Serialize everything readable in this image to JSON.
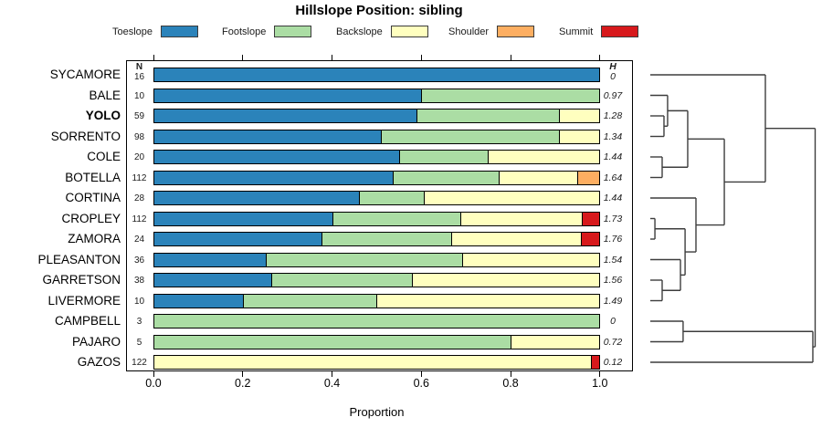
{
  "title": "Hillslope Position: sibling",
  "legend": {
    "items": [
      {
        "label": "Toeslope",
        "color": "#2B83BA"
      },
      {
        "label": "Footslope",
        "color": "#ABDDA4"
      },
      {
        "label": "Backslope",
        "color": "#FFFFBF"
      },
      {
        "label": "Shoulder",
        "color": "#FDAE61"
      },
      {
        "label": "Summit",
        "color": "#D7191C"
      }
    ]
  },
  "columns": {
    "n_header": "N",
    "h_header": "H"
  },
  "axis": {
    "xlabel": "Proportion",
    "tick_labels": [
      "0.0",
      "0.2",
      "0.4",
      "0.6",
      "0.8",
      "1.0"
    ],
    "tick_values": [
      0,
      0.2,
      0.4,
      0.6,
      0.8,
      1.0
    ]
  },
  "chart_data": {
    "type": "bar",
    "stacked": true,
    "orientation": "horizontal",
    "title": "Hillslope Position: sibling",
    "xlabel": "Proportion",
    "xlim": [
      0,
      1
    ],
    "grid": false,
    "legend_position": "top",
    "categories": [
      "Toeslope",
      "Footslope",
      "Backslope",
      "Shoulder",
      "Summit"
    ],
    "colors": [
      "#2B83BA",
      "#ABDDA4",
      "#FFFFBF",
      "#FDAE61",
      "#D7191C"
    ],
    "rows": [
      {
        "name": "SYCAMORE",
        "bold": false,
        "n": 16,
        "h": "0",
        "values": [
          1,
          0,
          0,
          0,
          0
        ]
      },
      {
        "name": "BALE",
        "bold": false,
        "n": 10,
        "h": "0.97",
        "values": [
          0.6,
          0.4,
          0,
          0,
          0
        ]
      },
      {
        "name": "YOLO",
        "bold": true,
        "n": 59,
        "h": "1.28",
        "values": [
          0.59,
          0.32,
          0.09,
          0,
          0
        ]
      },
      {
        "name": "SORRENTO",
        "bold": false,
        "n": 98,
        "h": "1.34",
        "values": [
          0.51,
          0.4,
          0.09,
          0,
          0
        ]
      },
      {
        "name": "COLE",
        "bold": false,
        "n": 20,
        "h": "1.44",
        "values": [
          0.55,
          0.2,
          0.25,
          0,
          0
        ]
      },
      {
        "name": "BOTELLA",
        "bold": false,
        "n": 112,
        "h": "1.64",
        "values": [
          0.535,
          0.24,
          0.175,
          0.05,
          0
        ]
      },
      {
        "name": "CORTINA",
        "bold": false,
        "n": 28,
        "h": "1.44",
        "values": [
          0.46,
          0.145,
          0.395,
          0,
          0
        ]
      },
      {
        "name": "CROPLEY",
        "bold": false,
        "n": 112,
        "h": "1.73",
        "values": [
          0.4,
          0.288,
          0.272,
          0,
          0.04
        ]
      },
      {
        "name": "ZAMORA",
        "bold": false,
        "n": 24,
        "h": "1.76",
        "values": [
          0.375,
          0.292,
          0.291,
          0,
          0.042
        ]
      },
      {
        "name": "PLEASANTON",
        "bold": false,
        "n": 36,
        "h": "1.54",
        "values": [
          0.25,
          0.443,
          0.307,
          0,
          0
        ]
      },
      {
        "name": "GARRETSON",
        "bold": false,
        "n": 38,
        "h": "1.56",
        "values": [
          0.263,
          0.317,
          0.42,
          0,
          0
        ]
      },
      {
        "name": "LIVERMORE",
        "bold": false,
        "n": 10,
        "h": "1.49",
        "values": [
          0.2,
          0.3,
          0.5,
          0,
          0
        ]
      },
      {
        "name": "CAMPBELL",
        "bold": false,
        "n": 3,
        "h": "0",
        "values": [
          0,
          1,
          0,
          0,
          0
        ]
      },
      {
        "name": "PAJARO",
        "bold": false,
        "n": 5,
        "h": "0.72",
        "values": [
          0,
          0.8,
          0.2,
          0,
          0
        ]
      },
      {
        "name": "GAZOS",
        "bold": false,
        "n": 122,
        "h": "0.12",
        "values": [
          0,
          0,
          0.982,
          0,
          0.018
        ]
      }
    ],
    "dendrogram": {
      "leaf_order_matches_rows": true,
      "merges": [
        {
          "a": "L2",
          "b": "L3",
          "h": 0.083
        },
        {
          "a": "L1",
          "b": "M0",
          "h": 0.105
        },
        {
          "a": "L4",
          "b": "L5",
          "h": 0.072
        },
        {
          "a": "M1",
          "b": "M2",
          "h": 0.227
        },
        {
          "a": "L7",
          "b": "L8",
          "h": 0.028
        },
        {
          "a": "L10",
          "b": "L11",
          "h": 0.072
        },
        {
          "a": "L9",
          "b": "M5",
          "h": 0.183
        },
        {
          "a": "M4",
          "b": "M6",
          "h": 0.211
        },
        {
          "a": "L6",
          "b": "M7",
          "h": 0.277
        },
        {
          "a": "M3",
          "b": "M8",
          "h": 0.449
        },
        {
          "a": "L0",
          "b": "M9",
          "h": 0.698
        },
        {
          "a": "L12",
          "b": "L13",
          "h": 0.199
        },
        {
          "a": "M11",
          "b": "L14",
          "h": 0.986
        },
        {
          "a": "M10",
          "b": "M12",
          "h": 1.0
        }
      ]
    }
  }
}
